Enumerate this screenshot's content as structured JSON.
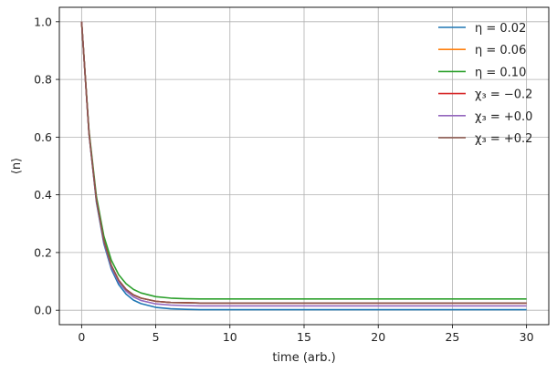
{
  "chart_data": {
    "type": "line",
    "xlabel": "time (arb.)",
    "ylabel": "⟨n⟩",
    "xlim": [
      -1.5,
      31.5
    ],
    "ylim": [
      -0.05,
      1.05
    ],
    "xticks": [
      0,
      5,
      10,
      15,
      20,
      25,
      30
    ],
    "yticks": [
      0.0,
      0.2,
      0.4,
      0.6,
      0.8,
      1.0
    ],
    "xtick_labels": [
      "0",
      "5",
      "10",
      "15",
      "20",
      "25",
      "30"
    ],
    "ytick_labels": [
      "0.0",
      "0.2",
      "0.4",
      "0.6",
      "0.8",
      "1.0"
    ],
    "grid": true,
    "legend_position": "top-right",
    "x": [
      0,
      0.5,
      1,
      1.5,
      2,
      2.5,
      3,
      3.5,
      4,
      5,
      6,
      7,
      8,
      10,
      12,
      15,
      20,
      25,
      30
    ],
    "series": [
      {
        "name": "η = 0.02",
        "color": "#1f77b4",
        "values": [
          1.0,
          0.611,
          0.374,
          0.231,
          0.143,
          0.089,
          0.056,
          0.035,
          0.023,
          0.01,
          0.005,
          0.003,
          0.002,
          0.002,
          0.002,
          0.002,
          0.002,
          0.002,
          0.002
        ]
      },
      {
        "name": "η = 0.06",
        "color": "#ff7f0e",
        "values": [
          1.0,
          0.614,
          0.381,
          0.241,
          0.156,
          0.104,
          0.072,
          0.053,
          0.042,
          0.031,
          0.027,
          0.026,
          0.025,
          0.025,
          0.025,
          0.025,
          0.025,
          0.025,
          0.025
        ]
      },
      {
        "name": "η = 0.10",
        "color": "#2ca02c",
        "values": [
          1.0,
          0.622,
          0.394,
          0.257,
          0.174,
          0.123,
          0.092,
          0.072,
          0.06,
          0.047,
          0.042,
          0.04,
          0.039,
          0.039,
          0.039,
          0.039,
          0.039,
          0.039,
          0.039
        ]
      },
      {
        "name": "χ₃ = −0.2",
        "color": "#d62728",
        "values": [
          1.0,
          0.614,
          0.381,
          0.241,
          0.156,
          0.104,
          0.072,
          0.053,
          0.042,
          0.031,
          0.027,
          0.026,
          0.025,
          0.025,
          0.025,
          0.025,
          0.025,
          0.025,
          0.025
        ]
      },
      {
        "name": "χ₃ = +0.0",
        "color": "#9467bd",
        "values": [
          1.0,
          0.612,
          0.378,
          0.236,
          0.15,
          0.098,
          0.066,
          0.046,
          0.034,
          0.022,
          0.018,
          0.016,
          0.015,
          0.015,
          0.015,
          0.015,
          0.015,
          0.015,
          0.015
        ]
      },
      {
        "name": "χ₃ = +0.2",
        "color": "#8c564b",
        "values": [
          1.0,
          0.614,
          0.381,
          0.241,
          0.156,
          0.104,
          0.072,
          0.053,
          0.042,
          0.031,
          0.027,
          0.026,
          0.025,
          0.025,
          0.025,
          0.025,
          0.025,
          0.025,
          0.025
        ]
      }
    ]
  }
}
